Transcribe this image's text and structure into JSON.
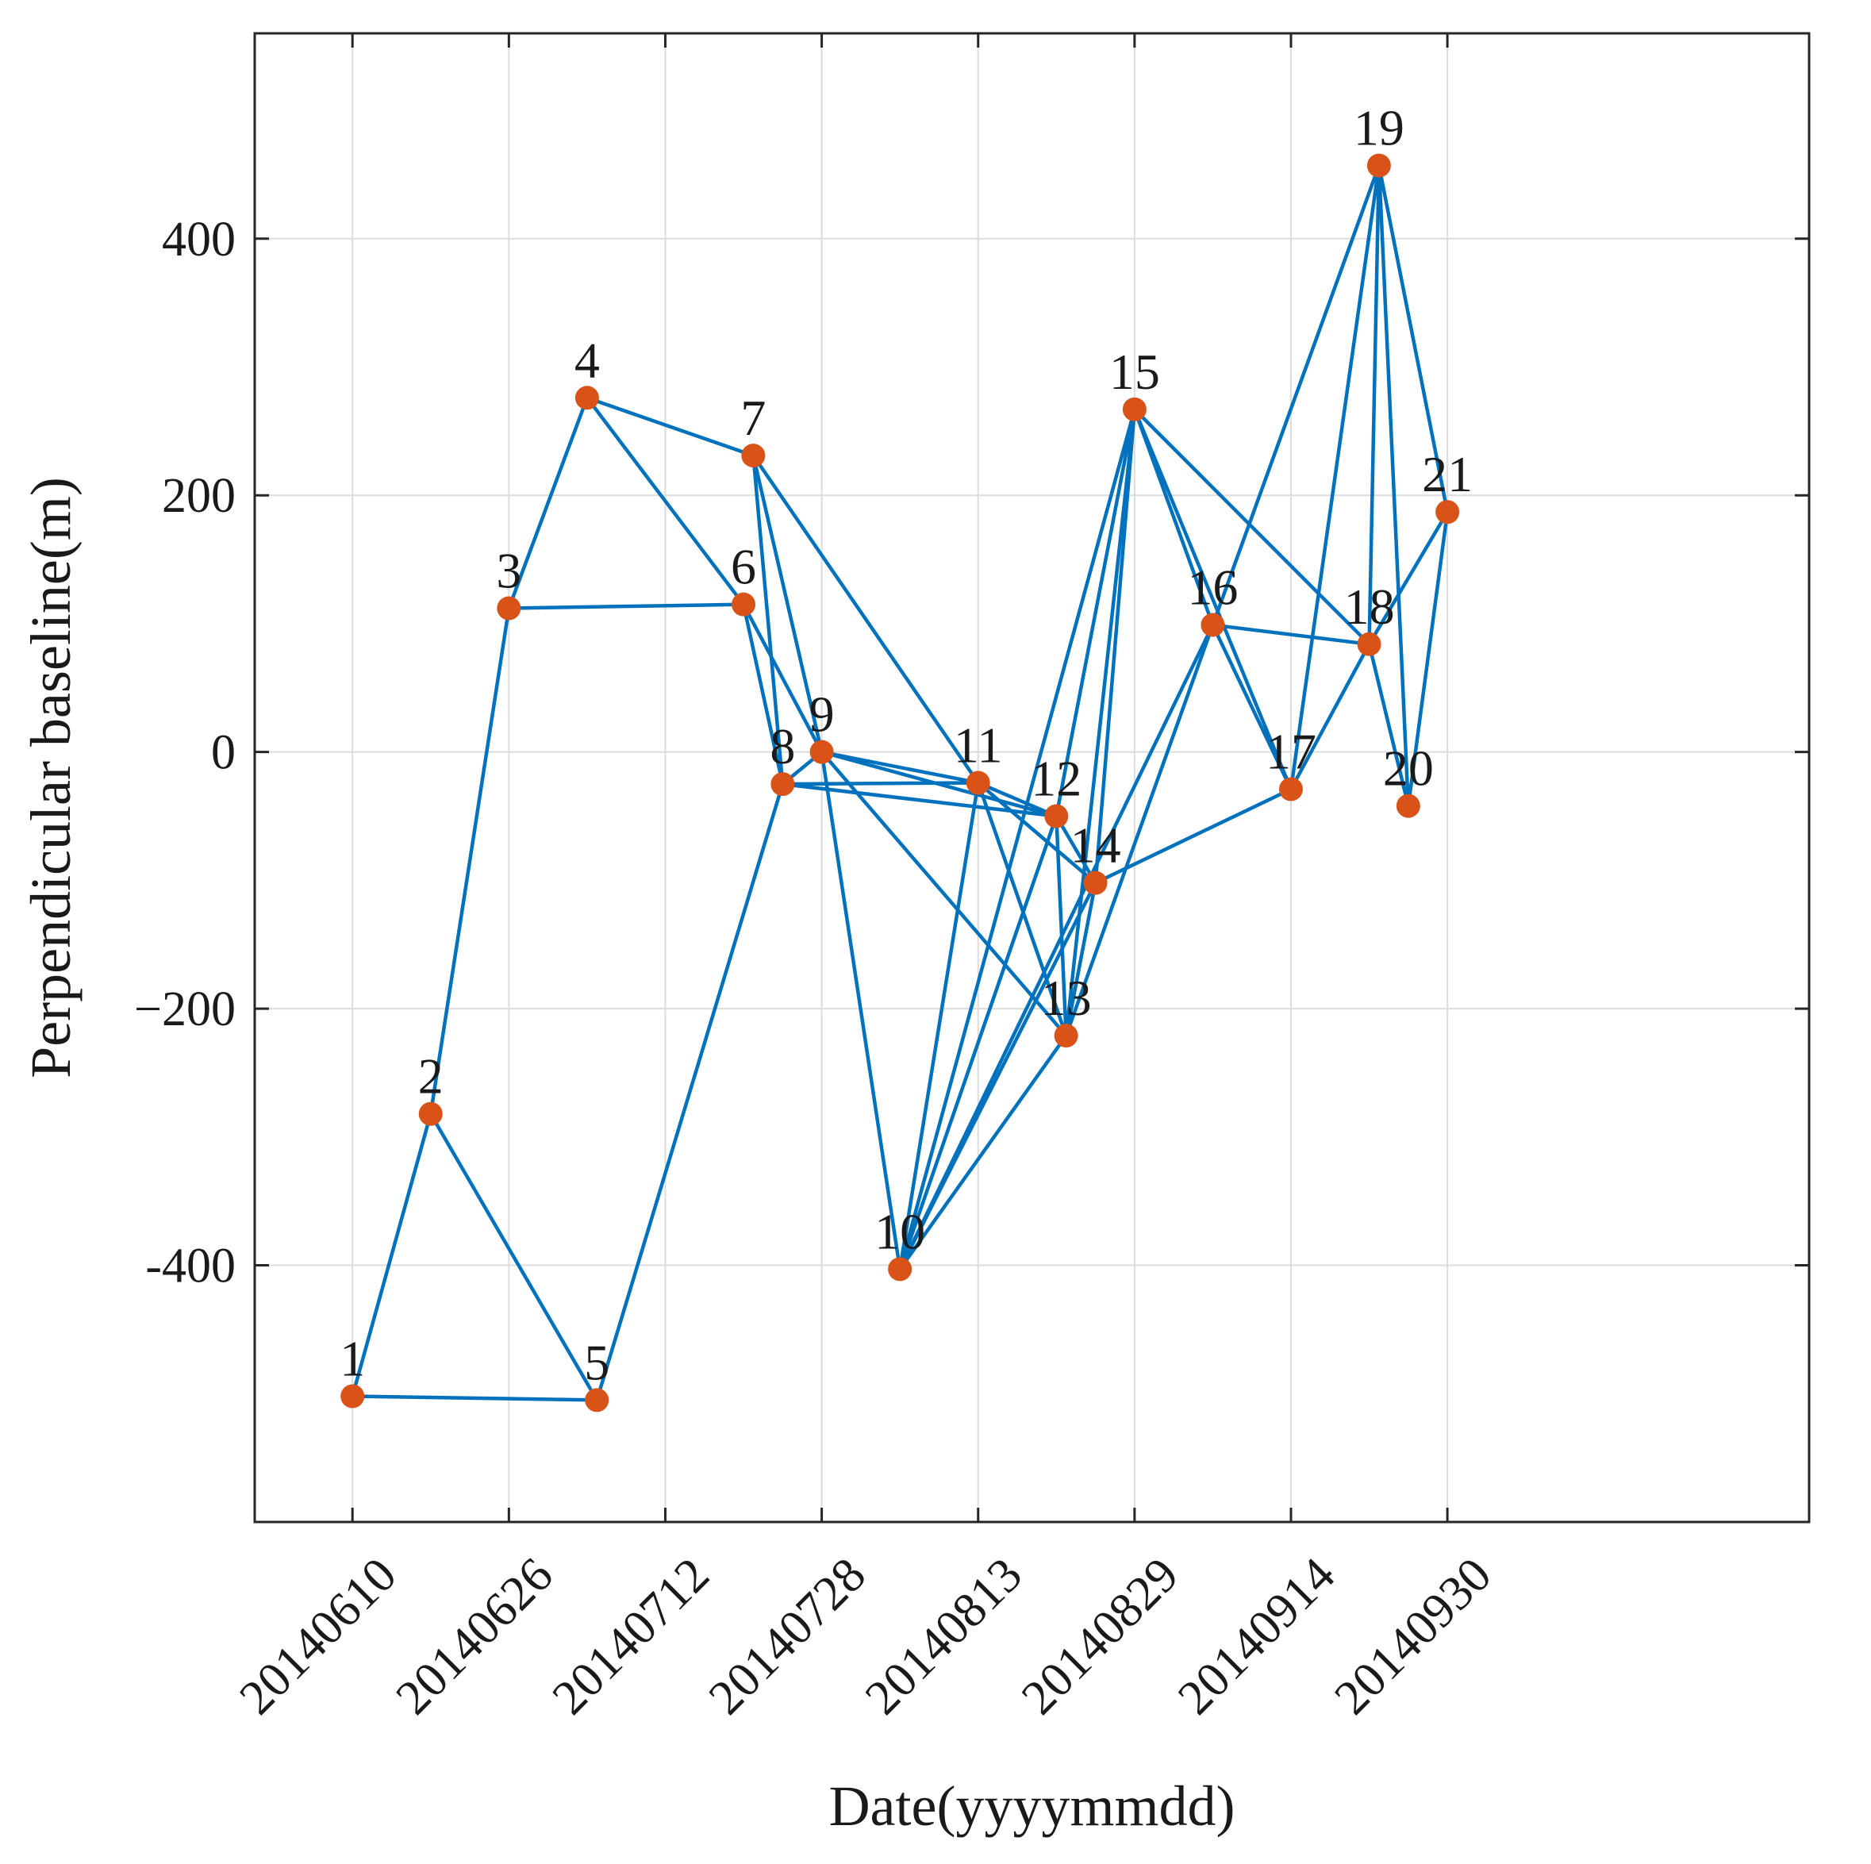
{
  "chart_data": {
    "type": "network-scatter",
    "title": "",
    "xlabel": "Date(yyyymmdd)",
    "ylabel": "Perpendicular baseline(m)",
    "grid": true,
    "xlim_days": [
      -10,
      149
    ],
    "ylim": [
      -600,
      560
    ],
    "x_ticks": [
      {
        "day": 0,
        "label": "20140610"
      },
      {
        "day": 16,
        "label": "20140626"
      },
      {
        "day": 32,
        "label": "20140712"
      },
      {
        "day": 48,
        "label": "20140728"
      },
      {
        "day": 64,
        "label": "20140813"
      },
      {
        "day": 80,
        "label": "20140829"
      },
      {
        "day": 96,
        "label": "20140914"
      },
      {
        "day": 112,
        "label": "20140930"
      }
    ],
    "y_ticks": [
      {
        "value": 400,
        "label": "400"
      },
      {
        "value": 200,
        "label": "200"
      },
      {
        "value": 0,
        "label": "0"
      },
      {
        "value": -200,
        "label": "−200"
      },
      {
        "value": -400,
        "label": "-400"
      }
    ],
    "colors": {
      "edge": "#0072BD",
      "node": "#D95319",
      "grid": "#dcdcdc",
      "axis": "#262626"
    },
    "nodes": [
      {
        "id": 1,
        "label": "1",
        "day": 0,
        "baseline": -502
      },
      {
        "id": 2,
        "label": "2",
        "day": 8,
        "baseline": -282
      },
      {
        "id": 3,
        "label": "3",
        "day": 16,
        "baseline": 112
      },
      {
        "id": 4,
        "label": "4",
        "day": 24,
        "baseline": 276
      },
      {
        "id": 5,
        "label": "5",
        "day": 25,
        "baseline": -505
      },
      {
        "id": 6,
        "label": "6",
        "day": 40,
        "baseline": 115
      },
      {
        "id": 7,
        "label": "7",
        "day": 41,
        "baseline": 231
      },
      {
        "id": 8,
        "label": "8",
        "day": 44,
        "baseline": -25
      },
      {
        "id": 9,
        "label": "9",
        "day": 48,
        "baseline": 0
      },
      {
        "id": 10,
        "label": "10",
        "day": 56,
        "baseline": -403
      },
      {
        "id": 11,
        "label": "11",
        "day": 64,
        "baseline": -24
      },
      {
        "id": 12,
        "label": "12",
        "day": 72,
        "baseline": -50
      },
      {
        "id": 13,
        "label": "13",
        "day": 73,
        "baseline": -221
      },
      {
        "id": 14,
        "label": "14",
        "day": 76,
        "baseline": -102
      },
      {
        "id": 15,
        "label": "15",
        "day": 80,
        "baseline": 267
      },
      {
        "id": 16,
        "label": "16",
        "day": 88,
        "baseline": 99
      },
      {
        "id": 17,
        "label": "17",
        "day": 96,
        "baseline": -29
      },
      {
        "id": 18,
        "label": "18",
        "day": 104,
        "baseline": 84
      },
      {
        "id": 19,
        "label": "19",
        "day": 105,
        "baseline": 457
      },
      {
        "id": 20,
        "label": "20",
        "day": 108,
        "baseline": -42
      },
      {
        "id": 21,
        "label": "21",
        "day": 112,
        "baseline": 187
      }
    ],
    "edges": [
      [
        1,
        2
      ],
      [
        1,
        5
      ],
      [
        2,
        3
      ],
      [
        2,
        5
      ],
      [
        3,
        4
      ],
      [
        3,
        6
      ],
      [
        4,
        7
      ],
      [
        4,
        6
      ],
      [
        5,
        8
      ],
      [
        6,
        8
      ],
      [
        6,
        9
      ],
      [
        7,
        8
      ],
      [
        7,
        9
      ],
      [
        7,
        11
      ],
      [
        8,
        9
      ],
      [
        8,
        11
      ],
      [
        8,
        12
      ],
      [
        9,
        10
      ],
      [
        9,
        11
      ],
      [
        9,
        12
      ],
      [
        9,
        13
      ],
      [
        10,
        11
      ],
      [
        10,
        12
      ],
      [
        10,
        13
      ],
      [
        10,
        14
      ],
      [
        10,
        15
      ],
      [
        10,
        16
      ],
      [
        11,
        12
      ],
      [
        11,
        13
      ],
      [
        11,
        14
      ],
      [
        12,
        14
      ],
      [
        12,
        15
      ],
      [
        12,
        13
      ],
      [
        13,
        14
      ],
      [
        13,
        15
      ],
      [
        13,
        16
      ],
      [
        14,
        15
      ],
      [
        14,
        17
      ],
      [
        15,
        16
      ],
      [
        15,
        17
      ],
      [
        15,
        18
      ],
      [
        16,
        17
      ],
      [
        16,
        18
      ],
      [
        16,
        19
      ],
      [
        17,
        18
      ],
      [
        17,
        19
      ],
      [
        18,
        19
      ],
      [
        18,
        20
      ],
      [
        18,
        21
      ],
      [
        19,
        20
      ],
      [
        19,
        21
      ],
      [
        20,
        21
      ]
    ]
  }
}
